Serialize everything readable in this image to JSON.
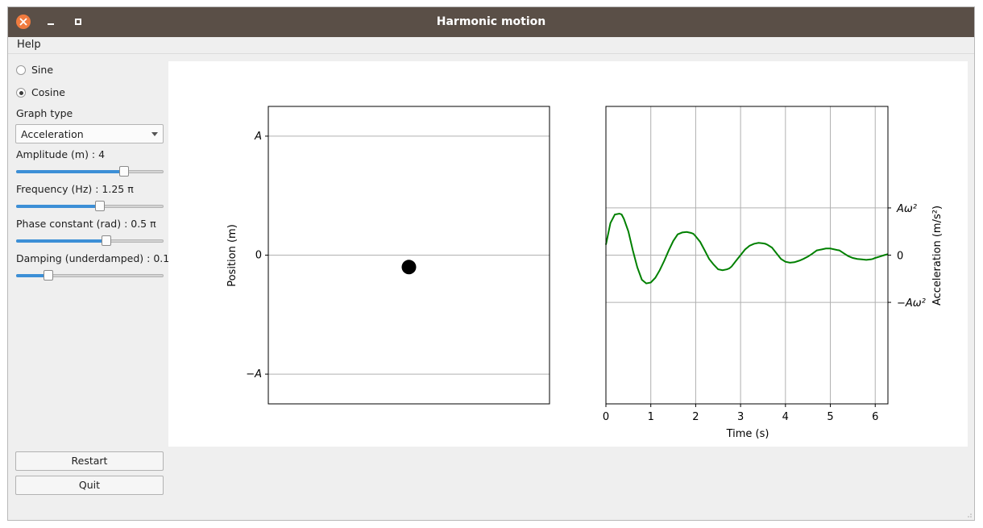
{
  "window": {
    "title": "Harmonic motion"
  },
  "menu": {
    "help": "Help"
  },
  "controls": {
    "wave_options": [
      {
        "label": "Sine",
        "checked": false
      },
      {
        "label": "Cosine",
        "checked": true
      }
    ],
    "graph_type_label": "Graph type",
    "graph_type_value": "Acceleration",
    "sliders": [
      {
        "label": "Amplitude (m) : 4",
        "fraction": 0.73
      },
      {
        "label": "Frequency (Hz) : 1.25 π",
        "fraction": 0.57
      },
      {
        "label": "Phase constant (rad) : 0.5 π",
        "fraction": 0.61
      },
      {
        "label": "Damping (underdamped) : 0.1",
        "fraction": 0.22
      }
    ],
    "restart_label": "Restart",
    "quit_label": "Quit"
  },
  "position_plot": {
    "ylabel": "Position (m)",
    "yticks": [
      {
        "value": 1,
        "label": "A",
        "italic": true
      },
      {
        "value": 0,
        "label": "0",
        "italic": false
      },
      {
        "value": -1,
        "label": "−A",
        "italic": true
      }
    ],
    "ylim": [
      -1.25,
      1.25
    ],
    "ball": {
      "x": 0.5,
      "y": -0.1
    },
    "colors": {
      "ball": "#000000",
      "grid": "#b0b0b0"
    }
  },
  "chart_data": {
    "type": "line",
    "xlabel": "Time (s)",
    "ylabel": "Acceleration (m/s²)",
    "xlim": [
      0,
      6.283
    ],
    "ylim": [
      -3.15,
      3.15
    ],
    "xticks": [
      0,
      1,
      2,
      3,
      4,
      5,
      6
    ],
    "yticks": [
      {
        "value": 1,
        "label": "Aω²"
      },
      {
        "value": 0,
        "label": "0"
      },
      {
        "value": -1,
        "label": "−Aω²"
      }
    ],
    "grid": true,
    "series": [
      {
        "color": "#008000",
        "x": [
          0,
          0.1,
          0.2,
          0.3,
          0.35,
          0.4,
          0.5,
          0.6,
          0.7,
          0.8,
          0.9,
          1.0,
          1.1,
          1.15,
          1.2,
          1.3,
          1.4,
          1.5,
          1.6,
          1.7,
          1.8,
          1.9,
          1.95,
          2.0,
          2.1,
          2.2,
          2.3,
          2.4,
          2.5,
          2.6,
          2.7,
          2.75,
          2.8,
          2.9,
          3.0,
          3.1,
          3.2,
          3.3,
          3.4,
          3.5,
          3.55,
          3.6,
          3.7,
          3.8,
          3.9,
          4.0,
          4.1,
          4.2,
          4.3,
          4.35,
          4.4,
          4.5,
          4.6,
          4.7,
          4.8,
          4.9,
          5.0,
          5.1,
          5.15,
          5.2,
          5.3,
          5.4,
          5.5,
          5.6,
          5.7,
          5.8,
          5.9,
          5.95,
          6.0,
          6.1,
          6.2,
          6.28
        ],
        "values": [
          0.22,
          0.68,
          0.86,
          0.88,
          0.86,
          0.77,
          0.5,
          0.1,
          -0.26,
          -0.52,
          -0.6,
          -0.58,
          -0.48,
          -0.4,
          -0.32,
          -0.12,
          0.1,
          0.3,
          0.44,
          0.48,
          0.49,
          0.47,
          0.45,
          0.4,
          0.28,
          0.1,
          -0.08,
          -0.2,
          -0.3,
          -0.32,
          -0.3,
          -0.28,
          -0.24,
          -0.12,
          0.0,
          0.12,
          0.2,
          0.24,
          0.26,
          0.25,
          0.24,
          0.22,
          0.16,
          0.04,
          -0.08,
          -0.14,
          -0.16,
          -0.15,
          -0.12,
          -0.1,
          -0.08,
          -0.03,
          0.03,
          0.1,
          0.12,
          0.14,
          0.14,
          0.12,
          0.11,
          0.1,
          0.04,
          -0.02,
          -0.06,
          -0.08,
          -0.09,
          -0.1,
          -0.09,
          -0.08,
          -0.06,
          -0.03,
          0.0,
          0.02
        ]
      }
    ]
  }
}
